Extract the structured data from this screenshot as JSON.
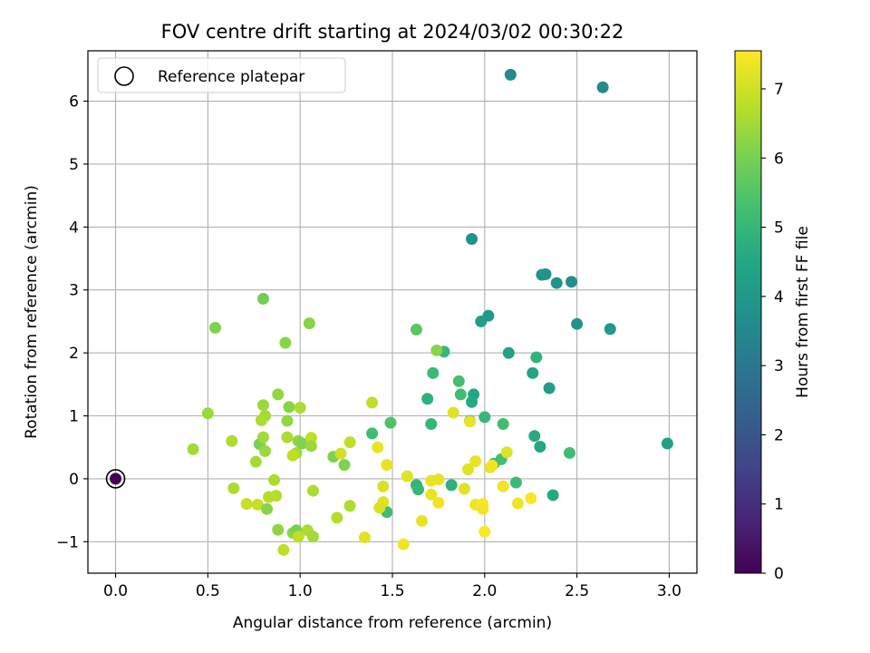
{
  "chart_data": {
    "type": "scatter",
    "title": "FOV centre drift starting at 2024/03/02 00:30:22",
    "xlabel": "Angular distance from reference (arcmin)",
    "ylabel": "Rotation from reference (arcmin)",
    "xlim": [
      -0.15,
      3.15
    ],
    "ylim": [
      -1.5,
      6.8
    ],
    "xticks": [
      "0.0",
      "0.5",
      "1.0",
      "1.5",
      "2.0",
      "2.5",
      "3.0"
    ],
    "yticks": [
      "−1",
      "0",
      "1",
      "2",
      "3",
      "4",
      "5",
      "6"
    ],
    "grid": true,
    "legend": {
      "position": "top-left",
      "entries": [
        "Reference platepar"
      ]
    },
    "colorbar": {
      "label": "Hours from first FF file",
      "range": [
        0,
        7.55
      ],
      "ticks": [
        "0",
        "1",
        "2",
        "3",
        "4",
        "5",
        "6",
        "7"
      ],
      "colormap": "viridis"
    },
    "reference": {
      "x": 0.0,
      "y": 0.0,
      "color": "#440154"
    },
    "points": [
      {
        "x": 2.14,
        "y": 6.42,
        "c": 3.6
      },
      {
        "x": 2.64,
        "y": 6.22,
        "c": 3.6
      },
      {
        "x": 1.93,
        "y": 3.81,
        "c": 3.8
      },
      {
        "x": 2.31,
        "y": 3.24,
        "c": 3.8
      },
      {
        "x": 2.39,
        "y": 3.11,
        "c": 3.8
      },
      {
        "x": 2.47,
        "y": 3.13,
        "c": 3.7
      },
      {
        "x": 2.02,
        "y": 2.59,
        "c": 4.0
      },
      {
        "x": 1.98,
        "y": 2.5,
        "c": 4.2
      },
      {
        "x": 2.5,
        "y": 2.46,
        "c": 3.9
      },
      {
        "x": 2.68,
        "y": 2.38,
        "c": 4.0
      },
      {
        "x": 2.33,
        "y": 3.25,
        "c": 3.9
      },
      {
        "x": 2.13,
        "y": 2.0,
        "c": 4.3
      },
      {
        "x": 2.28,
        "y": 1.93,
        "c": 4.9
      },
      {
        "x": 2.26,
        "y": 1.68,
        "c": 4.4
      },
      {
        "x": 2.35,
        "y": 1.44,
        "c": 4.2
      },
      {
        "x": 1.94,
        "y": 1.34,
        "c": 4.5
      },
      {
        "x": 1.93,
        "y": 1.22,
        "c": 4.6
      },
      {
        "x": 1.87,
        "y": 1.34,
        "c": 5.2
      },
      {
        "x": 1.86,
        "y": 1.55,
        "c": 5.3
      },
      {
        "x": 1.78,
        "y": 2.02,
        "c": 5.0
      },
      {
        "x": 1.72,
        "y": 1.68,
        "c": 5.1
      },
      {
        "x": 1.69,
        "y": 1.27,
        "c": 4.8
      },
      {
        "x": 1.71,
        "y": 0.87,
        "c": 5.0
      },
      {
        "x": 1.92,
        "y": 0.92,
        "c": 4.6
      },
      {
        "x": 2.0,
        "y": 0.98,
        "c": 5.0
      },
      {
        "x": 2.1,
        "y": 0.87,
        "c": 5.2
      },
      {
        "x": 2.27,
        "y": 0.68,
        "c": 4.6
      },
      {
        "x": 2.3,
        "y": 0.51,
        "c": 4.5
      },
      {
        "x": 2.46,
        "y": 0.41,
        "c": 5.2
      },
      {
        "x": 2.99,
        "y": 0.56,
        "c": 4.3
      },
      {
        "x": 2.09,
        "y": 0.31,
        "c": 5.3
      },
      {
        "x": 2.05,
        "y": 0.24,
        "c": 5.2
      },
      {
        "x": 2.17,
        "y": -0.06,
        "c": 5.1
      },
      {
        "x": 1.82,
        "y": -0.1,
        "c": 4.8
      },
      {
        "x": 2.37,
        "y": -0.26,
        "c": 4.6
      },
      {
        "x": 1.63,
        "y": 2.37,
        "c": 5.6
      },
      {
        "x": 1.74,
        "y": 2.04,
        "c": 6.2
      },
      {
        "x": 1.39,
        "y": 0.72,
        "c": 5.2
      },
      {
        "x": 1.49,
        "y": 0.89,
        "c": 5.4
      },
      {
        "x": 1.63,
        "y": -0.1,
        "c": 4.9
      },
      {
        "x": 1.64,
        "y": -0.17,
        "c": 5.0
      },
      {
        "x": 1.47,
        "y": -0.53,
        "c": 5.2
      },
      {
        "x": 0.8,
        "y": 2.86,
        "c": 5.9
      },
      {
        "x": 0.54,
        "y": 2.4,
        "c": 6.1
      },
      {
        "x": 1.05,
        "y": 2.47,
        "c": 6.2
      },
      {
        "x": 0.92,
        "y": 2.16,
        "c": 6.2
      },
      {
        "x": 0.88,
        "y": 1.34,
        "c": 6.3
      },
      {
        "x": 0.8,
        "y": 1.17,
        "c": 6.4
      },
      {
        "x": 0.94,
        "y": 1.14,
        "c": 6.2
      },
      {
        "x": 1.0,
        "y": 1.13,
        "c": 6.6
      },
      {
        "x": 0.81,
        "y": 1.0,
        "c": 6.5
      },
      {
        "x": 0.79,
        "y": 0.93,
        "c": 6.6
      },
      {
        "x": 0.93,
        "y": 0.92,
        "c": 6.3
      },
      {
        "x": 0.5,
        "y": 1.04,
        "c": 6.4
      },
      {
        "x": 0.42,
        "y": 0.47,
        "c": 6.5
      },
      {
        "x": 0.63,
        "y": 0.6,
        "c": 6.6
      },
      {
        "x": 0.78,
        "y": 0.55,
        "c": 6.0
      },
      {
        "x": 0.8,
        "y": 0.66,
        "c": 6.5
      },
      {
        "x": 0.81,
        "y": 0.44,
        "c": 6.4
      },
      {
        "x": 0.93,
        "y": 0.66,
        "c": 6.6
      },
      {
        "x": 0.98,
        "y": 0.41,
        "c": 6.5
      },
      {
        "x": 0.96,
        "y": 0.37,
        "c": 6.8
      },
      {
        "x": 0.99,
        "y": 0.6,
        "c": 6.3
      },
      {
        "x": 1.01,
        "y": 0.56,
        "c": 6.1
      },
      {
        "x": 1.06,
        "y": 0.65,
        "c": 6.8
      },
      {
        "x": 1.06,
        "y": 0.52,
        "c": 6.4
      },
      {
        "x": 0.76,
        "y": 0.27,
        "c": 6.5
      },
      {
        "x": 1.18,
        "y": 0.35,
        "c": 6.1
      },
      {
        "x": 1.22,
        "y": 0.4,
        "c": 7.0
      },
      {
        "x": 1.24,
        "y": 0.22,
        "c": 6.1
      },
      {
        "x": 1.27,
        "y": 0.58,
        "c": 6.8
      },
      {
        "x": 1.39,
        "y": 1.21,
        "c": 6.8
      },
      {
        "x": 0.86,
        "y": -0.02,
        "c": 6.6
      },
      {
        "x": 0.64,
        "y": -0.15,
        "c": 6.6
      },
      {
        "x": 0.71,
        "y": -0.4,
        "c": 6.9
      },
      {
        "x": 0.77,
        "y": -0.41,
        "c": 6.9
      },
      {
        "x": 0.83,
        "y": -0.29,
        "c": 6.7
      },
      {
        "x": 0.87,
        "y": -0.27,
        "c": 6.7
      },
      {
        "x": 0.82,
        "y": -0.48,
        "c": 6.2
      },
      {
        "x": 1.07,
        "y": -0.19,
        "c": 6.6
      },
      {
        "x": 0.88,
        "y": -0.81,
        "c": 6.3
      },
      {
        "x": 0.91,
        "y": -1.13,
        "c": 6.8
      },
      {
        "x": 0.96,
        "y": -0.86,
        "c": 6.3
      },
      {
        "x": 0.98,
        "y": -0.82,
        "c": 6.0
      },
      {
        "x": 0.99,
        "y": -0.92,
        "c": 6.8
      },
      {
        "x": 1.04,
        "y": -0.82,
        "c": 6.6
      },
      {
        "x": 1.07,
        "y": -0.92,
        "c": 6.5
      },
      {
        "x": 1.2,
        "y": -0.62,
        "c": 6.7
      },
      {
        "x": 1.27,
        "y": -0.43,
        "c": 6.6
      },
      {
        "x": 1.35,
        "y": -0.93,
        "c": 7.2
      },
      {
        "x": 1.45,
        "y": -0.12,
        "c": 7.1
      },
      {
        "x": 1.42,
        "y": 0.5,
        "c": 7.3
      },
      {
        "x": 1.47,
        "y": 0.22,
        "c": 7.3
      },
      {
        "x": 1.58,
        "y": 0.04,
        "c": 7.2
      },
      {
        "x": 1.45,
        "y": -0.37,
        "c": 7.2
      },
      {
        "x": 1.43,
        "y": -0.46,
        "c": 7.1
      },
      {
        "x": 1.56,
        "y": -1.04,
        "c": 7.4
      },
      {
        "x": 1.66,
        "y": -0.67,
        "c": 7.3
      },
      {
        "x": 1.71,
        "y": -0.25,
        "c": 7.3
      },
      {
        "x": 1.71,
        "y": -0.03,
        "c": 7.3
      },
      {
        "x": 1.75,
        "y": -0.01,
        "c": 7.3
      },
      {
        "x": 1.75,
        "y": -0.38,
        "c": 7.4
      },
      {
        "x": 1.83,
        "y": 1.05,
        "c": 7.2
      },
      {
        "x": 1.89,
        "y": -0.16,
        "c": 7.2
      },
      {
        "x": 1.91,
        "y": 0.15,
        "c": 7.2
      },
      {
        "x": 1.92,
        "y": 0.91,
        "c": 7.3
      },
      {
        "x": 1.95,
        "y": 0.28,
        "c": 7.3
      },
      {
        "x": 1.95,
        "y": -0.41,
        "c": 7.4
      },
      {
        "x": 1.99,
        "y": -0.4,
        "c": 7.5
      },
      {
        "x": 1.99,
        "y": -0.48,
        "c": 7.4
      },
      {
        "x": 2.0,
        "y": -0.84,
        "c": 7.5
      },
      {
        "x": 2.03,
        "y": 0.18,
        "c": 7.3
      },
      {
        "x": 2.04,
        "y": 0.21,
        "c": 7.4
      },
      {
        "x": 2.1,
        "y": -0.12,
        "c": 7.4
      },
      {
        "x": 2.12,
        "y": 0.42,
        "c": 7.2
      },
      {
        "x": 2.18,
        "y": -0.39,
        "c": 7.4
      },
      {
        "x": 2.25,
        "y": -0.31,
        "c": 7.5
      }
    ]
  }
}
